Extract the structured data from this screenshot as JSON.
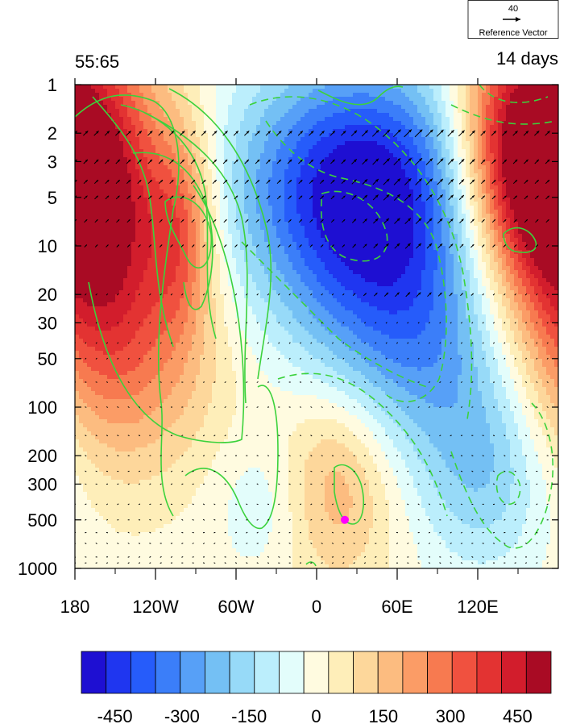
{
  "chart_data": {
    "type": "heatmap",
    "title_left": "55:65",
    "title_right": "14 days",
    "x_ticks": [
      {
        "lon": -180,
        "label": "180"
      },
      {
        "lon": -120,
        "label": "120W"
      },
      {
        "lon": -60,
        "label": "60W"
      },
      {
        "lon": 0,
        "label": "0"
      },
      {
        "lon": 60,
        "label": "60E"
      },
      {
        "lon": 120,
        "label": "120E"
      }
    ],
    "xlim": [
      -180,
      180
    ],
    "y_scale": "log",
    "ylim": [
      1000,
      1
    ],
    "y_ticks": [
      {
        "p": 1,
        "label": "1"
      },
      {
        "p": 2,
        "label": "2"
      },
      {
        "p": 3,
        "label": "3"
      },
      {
        "p": 5,
        "label": "5"
      },
      {
        "p": 10,
        "label": "10"
      },
      {
        "p": 20,
        "label": "20"
      },
      {
        "p": 30,
        "label": "30"
      },
      {
        "p": 50,
        "label": "50"
      },
      {
        "p": 100,
        "label": "100"
      },
      {
        "p": 200,
        "label": "200"
      },
      {
        "p": 300,
        "label": "300"
      },
      {
        "p": 500,
        "label": "500"
      },
      {
        "p": 1000,
        "label": "1000"
      }
    ],
    "vector_levels": [
      2,
      3,
      4,
      5,
      7,
      10,
      20,
      30,
      40,
      50,
      70,
      100,
      150,
      200,
      250,
      300,
      400,
      500,
      600,
      700,
      850,
      925
    ],
    "reference_vector": {
      "magnitude": "40",
      "label": "Reference Vector"
    },
    "marker": {
      "lon": 21,
      "p": 500,
      "color": "#ff00ff"
    },
    "colorbar": {
      "colors": [
        "#1e0fd2",
        "#1f36f0",
        "#265cfa",
        "#3b7ef9",
        "#57a0f7",
        "#74c0f4",
        "#97daf8",
        "#bbeefc",
        "#e3fdfb",
        "#fffbe0",
        "#feeeb9",
        "#fdd79b",
        "#fcbc80",
        "#fb9c66",
        "#f77a50",
        "#f0513f",
        "#e33332",
        "#d21d2c",
        "#a90b24"
      ],
      "tick_labels": [
        "-450",
        "-300",
        "-150",
        "0",
        "150",
        "300",
        "450"
      ],
      "tick_values": [
        -450,
        -300,
        -150,
        0,
        150,
        300,
        450
      ],
      "min": -525,
      "max": 525
    }
  }
}
